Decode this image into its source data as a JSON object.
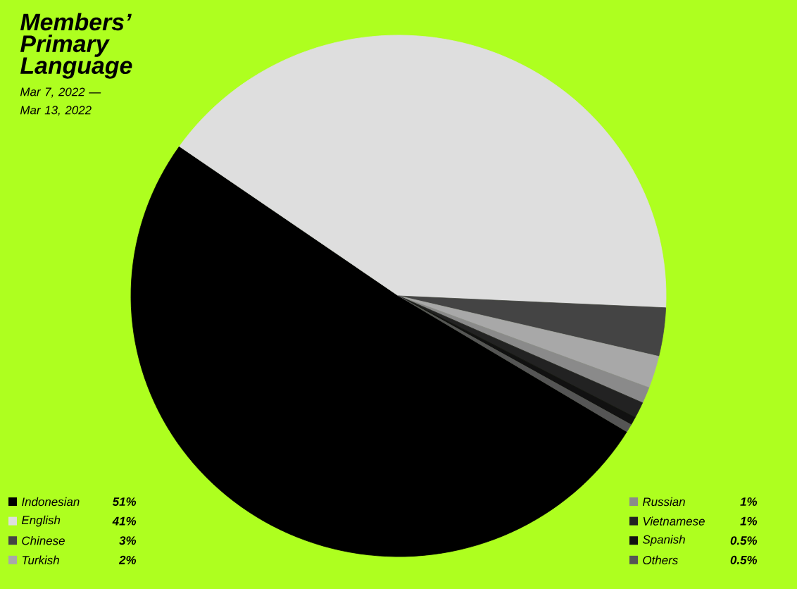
{
  "chart_data": {
    "type": "pie",
    "title": "Members’ Primary Language",
    "subtitle": "Mar 7, 2022 — Mar 13, 2022",
    "categories": [
      "Indonesian",
      "English",
      "Chinese",
      "Turkish",
      "Russian",
      "Vietnamese",
      "Spanish",
      "Others"
    ],
    "values": [
      51,
      41,
      3,
      2,
      1,
      1,
      0.5,
      0.5
    ],
    "value_labels": [
      "51%",
      "41%",
      "3%",
      "2%",
      "1%",
      "1%",
      "0.5%",
      "0.5%"
    ],
    "colors": [
      "#000000",
      "#dedede",
      "#444444",
      "#a8a8a8",
      "#8a8a8a",
      "#222222",
      "#111111",
      "#555555"
    ],
    "legend": "bottom"
  }
}
